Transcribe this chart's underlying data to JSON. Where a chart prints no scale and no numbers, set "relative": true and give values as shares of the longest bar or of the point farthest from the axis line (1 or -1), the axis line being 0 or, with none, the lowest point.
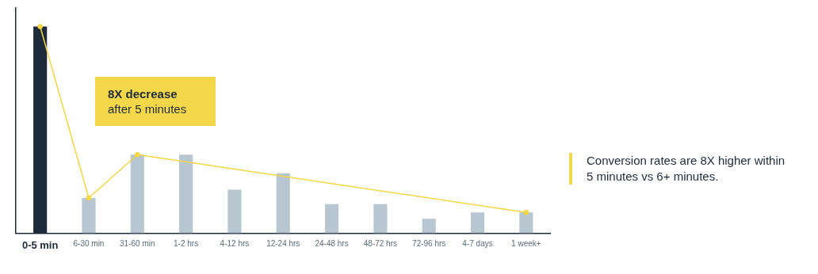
{
  "chart_data": {
    "type": "bar",
    "relative": true,
    "categories": [
      "0-5 min",
      "6-30 min",
      "31-60 min",
      "1-2 hrs",
      "4-12 hrs",
      "12-24 hrs",
      "24-48 hrs",
      "48-72 hrs",
      "72-96 hrs",
      "4-7 days",
      "1 week+"
    ],
    "series": [
      {
        "values": [
          1,
          0.17,
          0.38,
          0.38,
          0.21,
          0.29,
          0.14,
          0.14,
          0.07,
          0.1,
          0.1
        ],
        "colors": [
          "#1c2a3a",
          "#b8c6d1",
          "#b8c6d1",
          "#b8c6d1",
          "#b8c6d1",
          "#b8c6d1",
          "#b8c6d1",
          "#b8c6d1",
          "#b8c6d1",
          "#b8c6d1",
          "#b8c6d1"
        ]
      },
      {
        "type": "line",
        "x": [
          "0-5 min",
          "6-30 min",
          "31-60 min",
          "1 week+"
        ],
        "values": [
          1,
          0.17,
          0.38,
          0.1
        ],
        "color": "#f2d744"
      }
    ],
    "marker": "circle",
    "annotations": [
      "8X decrease\nafter 5 minutes",
      "Conversion rates are 8X higher within 5 minutes vs 6+ minutes."
    ]
  }
}
